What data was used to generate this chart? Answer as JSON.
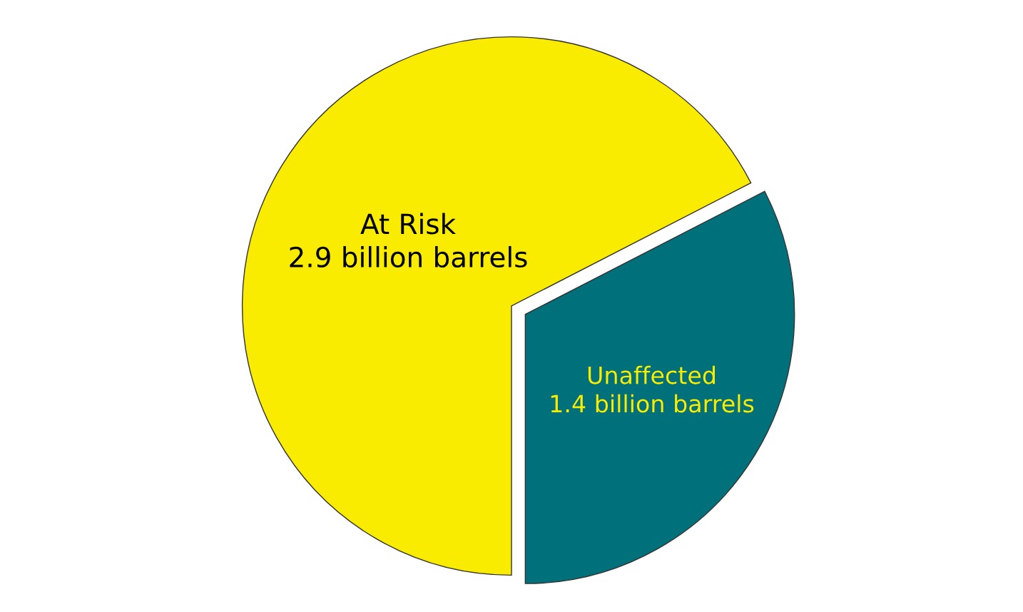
{
  "chart_data": {
    "type": "pie",
    "categories": [
      "At Risk",
      "Unaffected"
    ],
    "values": [
      2.9,
      1.4
    ],
    "colors": [
      "#f9ec00",
      "#00707a"
    ],
    "value_labels": [
      "2.9 billion barrels",
      "1.4 billion barrels"
    ],
    "legend": false
  }
}
